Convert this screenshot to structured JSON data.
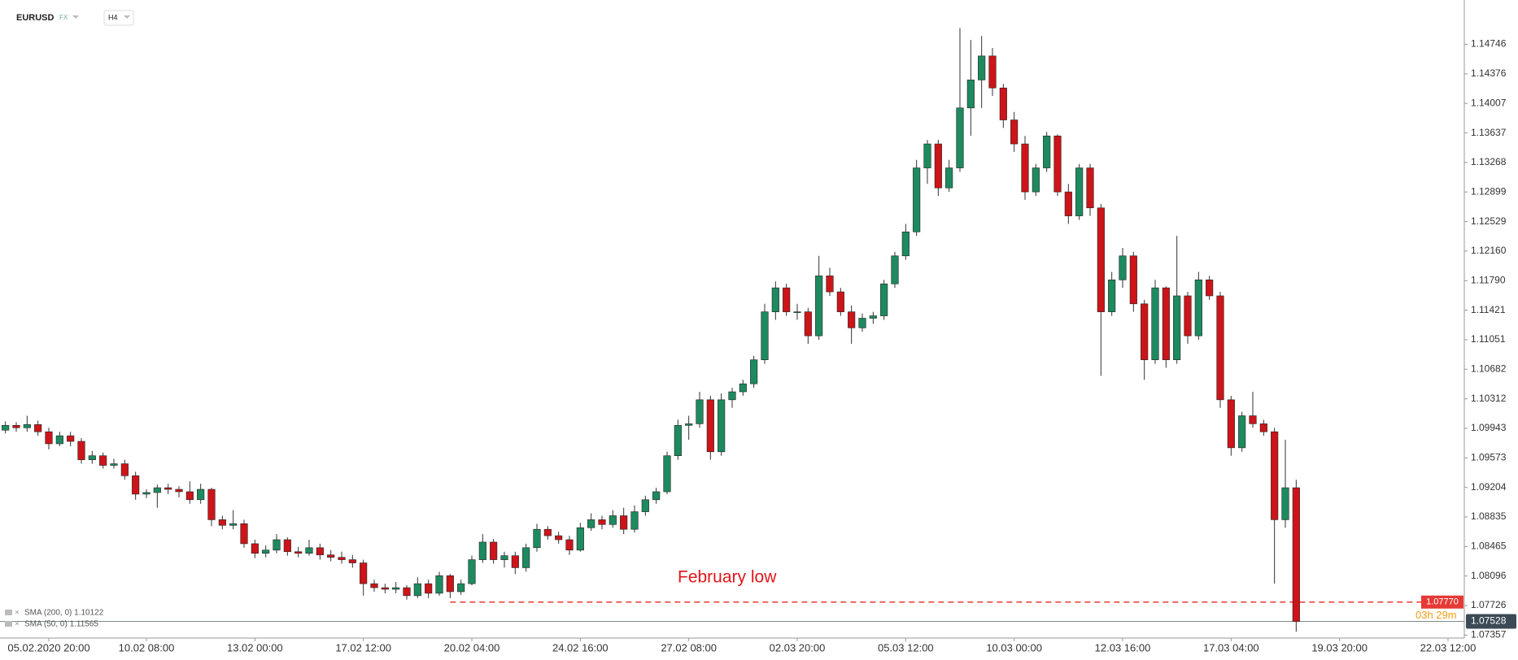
{
  "chart_data": {
    "type": "candlestick",
    "symbol": "EURUSD",
    "market": "FX",
    "timeframe": "H4",
    "indicators": [
      "SMA (200, 0) 1.10122",
      "SMA (50, 0) 1.11565"
    ],
    "colors": {
      "up": "#1d8a5f",
      "down": "#cc1419",
      "wick": "#333333"
    },
    "candles": [
      [
        1.0992,
        1.1003,
        1.0988,
        1.0998
      ],
      [
        1.0998,
        1.1002,
        1.099,
        1.0995
      ],
      [
        1.0995,
        1.101,
        1.099,
        1.0999
      ],
      [
        1.0999,
        1.1004,
        1.0985,
        1.099
      ],
      [
        1.099,
        1.0995,
        1.0968,
        1.0975
      ],
      [
        1.0975,
        1.099,
        1.0972,
        1.0985
      ],
      [
        1.0985,
        1.099,
        1.0972,
        1.0978
      ],
      [
        1.0978,
        1.0982,
        1.095,
        1.0955
      ],
      [
        1.0955,
        1.0966,
        1.095,
        1.096
      ],
      [
        1.096,
        1.0964,
        1.0944,
        1.0948
      ],
      [
        1.0948,
        1.0956,
        1.0944,
        1.095
      ],
      [
        1.095,
        1.0955,
        1.093,
        1.0935
      ],
      [
        1.0935,
        1.094,
        1.0905,
        1.0912
      ],
      [
        1.0912,
        1.0918,
        1.0907,
        1.0914
      ],
      [
        1.0914,
        1.0924,
        1.0895,
        1.092
      ],
      [
        1.092,
        1.0925,
        1.0912,
        1.0918
      ],
      [
        1.0918,
        1.0922,
        1.0908,
        1.0915
      ],
      [
        1.0915,
        1.0928,
        1.09,
        1.0905
      ],
      [
        1.0905,
        1.0925,
        1.09,
        1.0918
      ],
      [
        1.0918,
        1.092,
        1.0872,
        1.088
      ],
      [
        1.088,
        1.0885,
        1.0868,
        1.0873
      ],
      [
        1.0873,
        1.0892,
        1.0868,
        1.0875
      ],
      [
        1.0875,
        1.088,
        1.0845,
        1.085
      ],
      [
        1.085,
        1.0855,
        1.0832,
        1.0838
      ],
      [
        1.0838,
        1.0848,
        1.0833,
        1.0842
      ],
      [
        1.0842,
        1.0862,
        1.0838,
        1.0855
      ],
      [
        1.0855,
        1.0858,
        1.0835,
        1.084
      ],
      [
        1.084,
        1.0846,
        1.0833,
        1.0838
      ],
      [
        1.0838,
        1.0855,
        1.0835,
        1.0845
      ],
      [
        1.0845,
        1.085,
        1.083,
        1.0836
      ],
      [
        1.0836,
        1.0842,
        1.0828,
        1.0833
      ],
      [
        1.0833,
        1.084,
        1.0825,
        1.083
      ],
      [
        1.083,
        1.0836,
        1.082,
        1.0826
      ],
      [
        1.0826,
        1.083,
        1.0785,
        1.08
      ],
      [
        1.08,
        1.0805,
        1.079,
        1.0795
      ],
      [
        1.0795,
        1.08,
        1.0788,
        1.0793
      ],
      [
        1.0793,
        1.0802,
        1.0788,
        1.0795
      ],
      [
        1.0795,
        1.0798,
        1.078,
        1.0785
      ],
      [
        1.0785,
        1.0808,
        1.0782,
        1.08
      ],
      [
        1.08,
        1.0805,
        1.0782,
        1.0788
      ],
      [
        1.0788,
        1.0815,
        1.0785,
        1.081
      ],
      [
        1.081,
        1.0812,
        1.0782,
        1.079
      ],
      [
        1.079,
        1.0805,
        1.0786,
        1.08
      ],
      [
        1.08,
        1.0835,
        1.0798,
        1.083
      ],
      [
        1.083,
        1.0862,
        1.0826,
        1.0852
      ],
      [
        1.0852,
        1.0856,
        1.0825,
        1.083
      ],
      [
        1.083,
        1.084,
        1.082,
        1.0835
      ],
      [
        1.0835,
        1.084,
        1.0812,
        1.082
      ],
      [
        1.082,
        1.085,
        1.0815,
        1.0845
      ],
      [
        1.0845,
        1.0875,
        1.084,
        1.0868
      ],
      [
        1.0868,
        1.0872,
        1.0855,
        1.086
      ],
      [
        1.086,
        1.0865,
        1.085,
        1.0855
      ],
      [
        1.0855,
        1.086,
        1.0836,
        1.0842
      ],
      [
        1.0842,
        1.0876,
        1.084,
        1.087
      ],
      [
        1.087,
        1.0888,
        1.0866,
        1.088
      ],
      [
        1.088,
        1.0885,
        1.0868,
        1.0874
      ],
      [
        1.0874,
        1.0892,
        1.087,
        1.0885
      ],
      [
        1.0885,
        1.0895,
        1.0862,
        1.0868
      ],
      [
        1.0868,
        1.0898,
        1.0864,
        1.089
      ],
      [
        1.089,
        1.091,
        1.0885,
        1.0905
      ],
      [
        1.0905,
        1.092,
        1.09,
        1.0915
      ],
      [
        1.0915,
        1.0965,
        1.0912,
        1.096
      ],
      [
        1.096,
        1.1005,
        1.0955,
        1.0998
      ],
      [
        1.0998,
        1.101,
        1.098,
        1.1
      ],
      [
        1.1,
        1.104,
        1.0995,
        1.103
      ],
      [
        1.103,
        1.1035,
        1.0955,
        1.0965
      ],
      [
        1.0965,
        1.1038,
        1.096,
        1.103
      ],
      [
        1.103,
        1.1045,
        1.102,
        1.104
      ],
      [
        1.104,
        1.1055,
        1.1035,
        1.105
      ],
      [
        1.105,
        1.1085,
        1.1045,
        1.108
      ],
      [
        1.108,
        1.115,
        1.1075,
        1.114
      ],
      [
        1.114,
        1.1178,
        1.113,
        1.117
      ],
      [
        1.117,
        1.1175,
        1.1135,
        1.114
      ],
      [
        1.114,
        1.115,
        1.113,
        1.114
      ],
      [
        1.114,
        1.1145,
        1.11,
        1.111
      ],
      [
        1.111,
        1.121,
        1.1105,
        1.1185
      ],
      [
        1.1185,
        1.1195,
        1.116,
        1.1165
      ],
      [
        1.1165,
        1.117,
        1.1135,
        1.114
      ],
      [
        1.114,
        1.1148,
        1.11,
        1.112
      ],
      [
        1.112,
        1.1138,
        1.1115,
        1.1132
      ],
      [
        1.1132,
        1.114,
        1.1125,
        1.1135
      ],
      [
        1.1135,
        1.118,
        1.113,
        1.1175
      ],
      [
        1.1175,
        1.1215,
        1.117,
        1.121
      ],
      [
        1.121,
        1.125,
        1.1205,
        1.124
      ],
      [
        1.124,
        1.133,
        1.1235,
        1.132
      ],
      [
        1.132,
        1.1355,
        1.13,
        1.135
      ],
      [
        1.135,
        1.1355,
        1.1285,
        1.1295
      ],
      [
        1.1295,
        1.133,
        1.129,
        1.132
      ],
      [
        1.132,
        1.1495,
        1.1315,
        1.1395
      ],
      [
        1.1395,
        1.148,
        1.136,
        1.143
      ],
      [
        1.143,
        1.1485,
        1.1395,
        1.146
      ],
      [
        1.146,
        1.147,
        1.141,
        1.142
      ],
      [
        1.142,
        1.1425,
        1.137,
        1.138
      ],
      [
        1.138,
        1.139,
        1.134,
        1.135
      ],
      [
        1.135,
        1.136,
        1.128,
        1.129
      ],
      [
        1.129,
        1.1325,
        1.1285,
        1.132
      ],
      [
        1.132,
        1.1365,
        1.1315,
        1.136
      ],
      [
        1.136,
        1.1362,
        1.1285,
        1.129
      ],
      [
        1.129,
        1.13,
        1.125,
        1.126
      ],
      [
        1.126,
        1.1325,
        1.1255,
        1.132
      ],
      [
        1.132,
        1.1325,
        1.126,
        1.127
      ],
      [
        1.127,
        1.1275,
        1.106,
        1.114
      ],
      [
        1.114,
        1.119,
        1.1135,
        1.118
      ],
      [
        1.118,
        1.122,
        1.117,
        1.121
      ],
      [
        1.121,
        1.1215,
        1.114,
        1.115
      ],
      [
        1.115,
        1.1155,
        1.1055,
        1.108
      ],
      [
        1.108,
        1.118,
        1.1075,
        1.117
      ],
      [
        1.117,
        1.1172,
        1.107,
        1.108
      ],
      [
        1.108,
        1.1235,
        1.1075,
        1.116
      ],
      [
        1.116,
        1.1165,
        1.11,
        1.111
      ],
      [
        1.111,
        1.119,
        1.1105,
        1.118
      ],
      [
        1.118,
        1.1185,
        1.1155,
        1.116
      ],
      [
        1.116,
        1.1165,
        1.102,
        1.103
      ],
      [
        1.103,
        1.1035,
        1.096,
        1.097
      ],
      [
        1.097,
        1.1015,
        1.0965,
        1.101
      ],
      [
        1.101,
        1.104,
        1.0995,
        1.1
      ],
      [
        1.1,
        1.1005,
        1.0985,
        1.099
      ],
      [
        1.099,
        1.0995,
        1.08,
        1.088
      ],
      [
        1.088,
        1.098,
        1.087,
        1.092
      ],
      [
        1.092,
        1.093,
        1.074,
        1.07528
      ]
    ],
    "xlim": [
      -0.5,
      134.5
    ],
    "xticks": [
      {
        "value": 4,
        "label": "05.02.2020  20:00"
      },
      {
        "value": 13,
        "label": "10.02 08:00"
      },
      {
        "value": 23,
        "label": "13.02 00:00"
      },
      {
        "value": 33,
        "label": "17.02 12:00"
      },
      {
        "value": 43,
        "label": "20.02 04:00"
      },
      {
        "value": 53,
        "label": "24.02 16:00"
      },
      {
        "value": 63,
        "label": "27.02 08:00"
      },
      {
        "value": 73,
        "label": "02.03 20:00"
      },
      {
        "value": 83,
        "label": "05.03 12:00"
      },
      {
        "value": 93,
        "label": "10.03 00:00"
      },
      {
        "value": 103,
        "label": "12.03 16:00"
      },
      {
        "value": 113,
        "label": "17.03 04:00"
      },
      {
        "value": 123,
        "label": "19.03 20:00"
      },
      {
        "value": 133,
        "label": "22.03 12:00"
      }
    ],
    "ylim": [
      1.0732,
      1.153
    ],
    "yticks": [
      1.14746,
      1.14376,
      1.14007,
      1.13637,
      1.13268,
      1.12899,
      1.12529,
      {
        "value": 1.1216,
        "label": "1.12160"
      },
      {
        "value": 1.1179,
        "label": "1.11790"
      },
      1.11421,
      1.11051,
      1.10682,
      1.10312,
      1.09943,
      1.09573,
      1.09204,
      1.08835,
      1.08465,
      1.08096,
      1.07726,
      1.07357
    ],
    "level": {
      "text": "February low",
      "value": 1.0777,
      "value_label": "1.07770",
      "x_start": 41
    },
    "last_price": 1.07528,
    "countdown": "03h 29m"
  }
}
